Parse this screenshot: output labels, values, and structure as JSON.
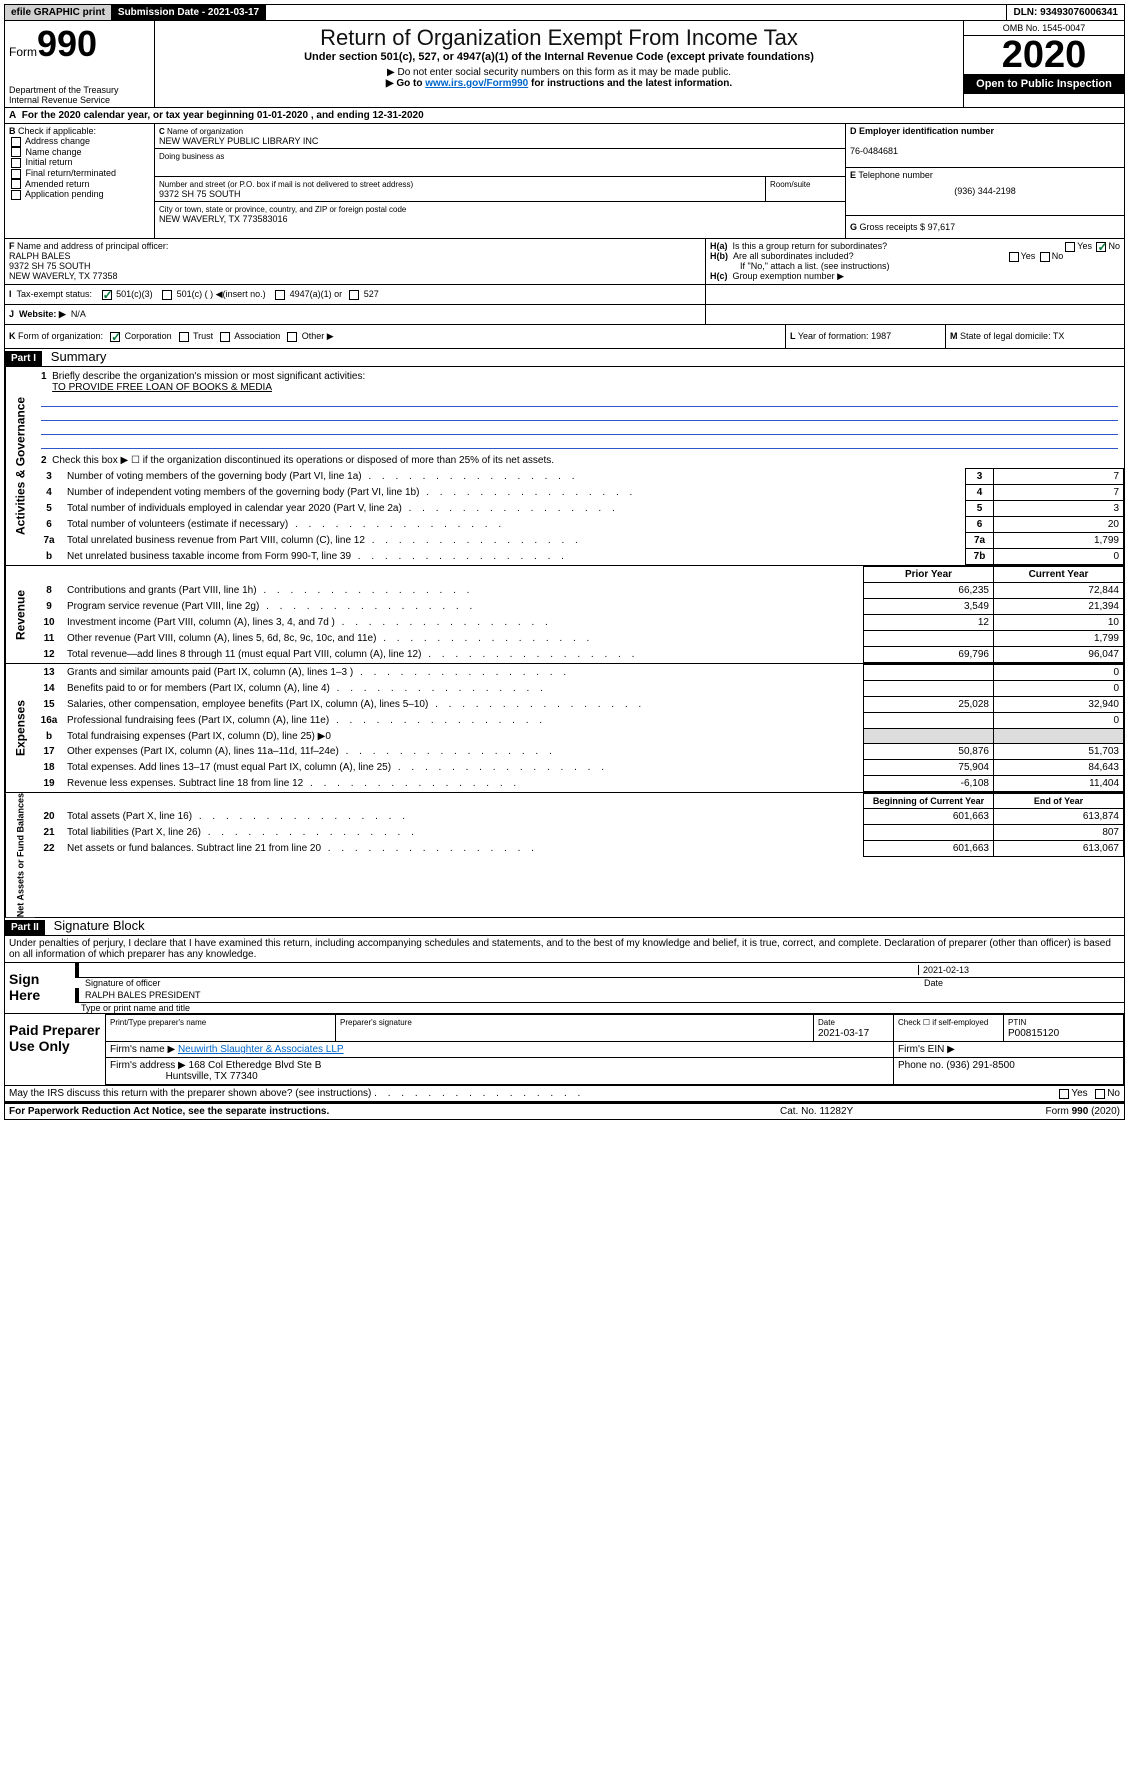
{
  "topbar": {
    "efile": "efile GRAPHIC print",
    "submission_label": "Submission Date - 2021-03-17",
    "dln": "DLN: 93493076006341"
  },
  "header": {
    "form_label": "Form",
    "form_num": "990",
    "department": "Department of the Treasury",
    "irs": "Internal Revenue Service",
    "main_title": "Return of Organization Exempt From Income Tax",
    "subtitle": "Under section 501(c), 527, or 4947(a)(1) of the Internal Revenue Code (except private foundations)",
    "note1": "Do not enter social security numbers on this form as it may be made public.",
    "note2_pre": "Go to ",
    "note2_link": "www.irs.gov/Form990",
    "note2_post": " for instructions and the latest information.",
    "omb": "OMB No. 1545-0047",
    "year": "2020",
    "inspect": "Open to Public Inspection"
  },
  "period": {
    "text_pre": "For the 2020 calendar year, or tax year beginning ",
    "begin": "01-01-2020",
    "mid": " , and ending ",
    "end": "12-31-2020"
  },
  "boxB": {
    "label": "Check if applicable:",
    "items": [
      "Address change",
      "Name change",
      "Initial return",
      "Final return/terminated",
      "Amended return",
      "Application pending"
    ]
  },
  "boxC": {
    "label": "Name of organization",
    "name": "NEW WAVERLY PUBLIC LIBRARY INC",
    "dba_label": "Doing business as",
    "addr_label": "Number and street (or P.O. box if mail is not delivered to street address)",
    "room_label": "Room/suite",
    "addr": "9372 SH 75 SOUTH",
    "city_label": "City or town, state or province, country, and ZIP or foreign postal code",
    "city": "NEW WAVERLY, TX  773583016"
  },
  "boxD": {
    "label": "Employer identification number",
    "value": "76-0484681"
  },
  "boxE": {
    "label": "Telephone number",
    "value": "(936) 344-2198"
  },
  "boxG": {
    "label": "Gross receipts $",
    "value": "97,617"
  },
  "boxF": {
    "label": "Name and address of principal officer:",
    "line1": "RALPH BALES",
    "line2": "9372 SH 75 SOUTH",
    "line3": "NEW WAVERLY, TX  77358"
  },
  "boxH": {
    "a_label": "Is this a group return for subordinates?",
    "b_label": "Are all subordinates included?",
    "note": "If \"No,\" attach a list. (see instructions)",
    "c_label": "Group exemption number ▶",
    "yes": "Yes",
    "no": "No"
  },
  "tax_status": {
    "label": "Tax-exempt status:",
    "opt1": "501(c)(3)",
    "opt2": "501(c) (  ) ◀(insert no.)",
    "opt3": "4947(a)(1) or",
    "opt4": "527"
  },
  "website": {
    "label": "Website: ▶",
    "value": "N/A"
  },
  "lineK": {
    "label": "Form of organization:",
    "opts": [
      "Corporation",
      "Trust",
      "Association",
      "Other ▶"
    ]
  },
  "lineL": {
    "label": "Year of formation:",
    "value": "1987"
  },
  "lineM": {
    "label": "State of legal domicile:",
    "value": "TX"
  },
  "part1": {
    "header": "Part I",
    "title": "Summary",
    "q1_label": "Briefly describe the organization's mission or most significant activities:",
    "q1_value": "TO PROVIDE FREE LOAN OF BOOKS & MEDIA",
    "q2": "Check this box ▶ ☐ if the organization discontinued its operations or disposed of more than 25% of its net assets.",
    "vtab_ag": "Activities & Governance",
    "vtab_rev": "Revenue",
    "vtab_exp": "Expenses",
    "vtab_net": "Net Assets or Fund Balances",
    "prior": "Prior Year",
    "current": "Current Year",
    "boy": "Beginning of Current Year",
    "eoy": "End of Year",
    "rows_gov": [
      {
        "n": "3",
        "d": "Number of voting members of the governing body (Part VI, line 1a)",
        "b": "3",
        "v": "7"
      },
      {
        "n": "4",
        "d": "Number of independent voting members of the governing body (Part VI, line 1b)",
        "b": "4",
        "v": "7"
      },
      {
        "n": "5",
        "d": "Total number of individuals employed in calendar year 2020 (Part V, line 2a)",
        "b": "5",
        "v": "3"
      },
      {
        "n": "6",
        "d": "Total number of volunteers (estimate if necessary)",
        "b": "6",
        "v": "20"
      },
      {
        "n": "7a",
        "d": "Total unrelated business revenue from Part VIII, column (C), line 12",
        "b": "7a",
        "v": "1,799"
      },
      {
        "n": "b",
        "d": "Net unrelated business taxable income from Form 990-T, line 39",
        "b": "7b",
        "v": "0"
      }
    ],
    "rows_rev": [
      {
        "n": "8",
        "d": "Contributions and grants (Part VIII, line 1h)",
        "p": "66,235",
        "c": "72,844"
      },
      {
        "n": "9",
        "d": "Program service revenue (Part VIII, line 2g)",
        "p": "3,549",
        "c": "21,394"
      },
      {
        "n": "10",
        "d": "Investment income (Part VIII, column (A), lines 3, 4, and 7d )",
        "p": "12",
        "c": "10"
      },
      {
        "n": "11",
        "d": "Other revenue (Part VIII, column (A), lines 5, 6d, 8c, 9c, 10c, and 11e)",
        "p": "",
        "c": "1,799"
      },
      {
        "n": "12",
        "d": "Total revenue—add lines 8 through 11 (must equal Part VIII, column (A), line 12)",
        "p": "69,796",
        "c": "96,047"
      }
    ],
    "rows_exp": [
      {
        "n": "13",
        "d": "Grants and similar amounts paid (Part IX, column (A), lines 1–3 )",
        "p": "",
        "c": "0"
      },
      {
        "n": "14",
        "d": "Benefits paid to or for members (Part IX, column (A), line 4)",
        "p": "",
        "c": "0"
      },
      {
        "n": "15",
        "d": "Salaries, other compensation, employee benefits (Part IX, column (A), lines 5–10)",
        "p": "25,028",
        "c": "32,940"
      },
      {
        "n": "16a",
        "d": "Professional fundraising fees (Part IX, column (A), line 11e)",
        "p": "",
        "c": "0"
      },
      {
        "n": "b",
        "d": "Total fundraising expenses (Part IX, column (D), line 25) ▶0",
        "p": null,
        "c": null
      },
      {
        "n": "17",
        "d": "Other expenses (Part IX, column (A), lines 11a–11d, 11f–24e)",
        "p": "50,876",
        "c": "51,703"
      },
      {
        "n": "18",
        "d": "Total expenses. Add lines 13–17 (must equal Part IX, column (A), line 25)",
        "p": "75,904",
        "c": "84,643"
      },
      {
        "n": "19",
        "d": "Revenue less expenses. Subtract line 18 from line 12",
        "p": "-6,108",
        "c": "11,404"
      }
    ],
    "rows_net": [
      {
        "n": "20",
        "d": "Total assets (Part X, line 16)",
        "p": "601,663",
        "c": "613,874"
      },
      {
        "n": "21",
        "d": "Total liabilities (Part X, line 26)",
        "p": "",
        "c": "807"
      },
      {
        "n": "22",
        "d": "Net assets or fund balances. Subtract line 21 from line 20",
        "p": "601,663",
        "c": "613,067"
      }
    ]
  },
  "part2": {
    "header": "Part II",
    "title": "Signature Block",
    "declaration": "Under penalties of perjury, I declare that I have examined this return, including accompanying schedules and statements, and to the best of my knowledge and belief, it is true, correct, and complete. Declaration of preparer (other than officer) is based on all information of which preparer has any knowledge.",
    "sign_here": "Sign Here",
    "sig_officer": "Signature of officer",
    "sig_date": "2021-02-13",
    "date_label": "Date",
    "officer_name": "RALPH BALES PRESIDENT",
    "type_name": "Type or print name and title",
    "paid_prep": "Paid Preparer Use Only",
    "col1": "Print/Type preparer's name",
    "col2": "Preparer's signature",
    "col3": "Date",
    "prep_date": "2021-03-17",
    "col4_a": "Check ☐ if self-employed",
    "col5": "PTIN",
    "ptin": "P00815120",
    "firm_name_l": "Firm's name   ▶",
    "firm_name": "Neuwirth Slaughter & Associates LLP",
    "firm_ein_l": "Firm's EIN ▶",
    "firm_addr_l": "Firm's address ▶",
    "firm_addr1": "168 Col Etheredge Blvd Ste B",
    "firm_addr2": "Huntsville, TX  77340",
    "phone_l": "Phone no.",
    "phone": "(936) 291-8500",
    "discuss": "May the IRS discuss this return with the preparer shown above? (see instructions)",
    "yes": "Yes",
    "no": "No"
  },
  "footer": {
    "paperwork": "For Paperwork Reduction Act Notice, see the separate instructions.",
    "cat": "Cat. No. 11282Y",
    "form": "Form 990 (2020)"
  },
  "letters": {
    "A": "A",
    "B": "B",
    "C": "C",
    "D": "D",
    "E": "E",
    "F": "F",
    "G": "G",
    "H(a)": "H(a)",
    "H(b)": "H(b)",
    "H(c)": "H(c)",
    "I": "I",
    "J": "J",
    "K": "K",
    "L": "L",
    "M": "M"
  }
}
